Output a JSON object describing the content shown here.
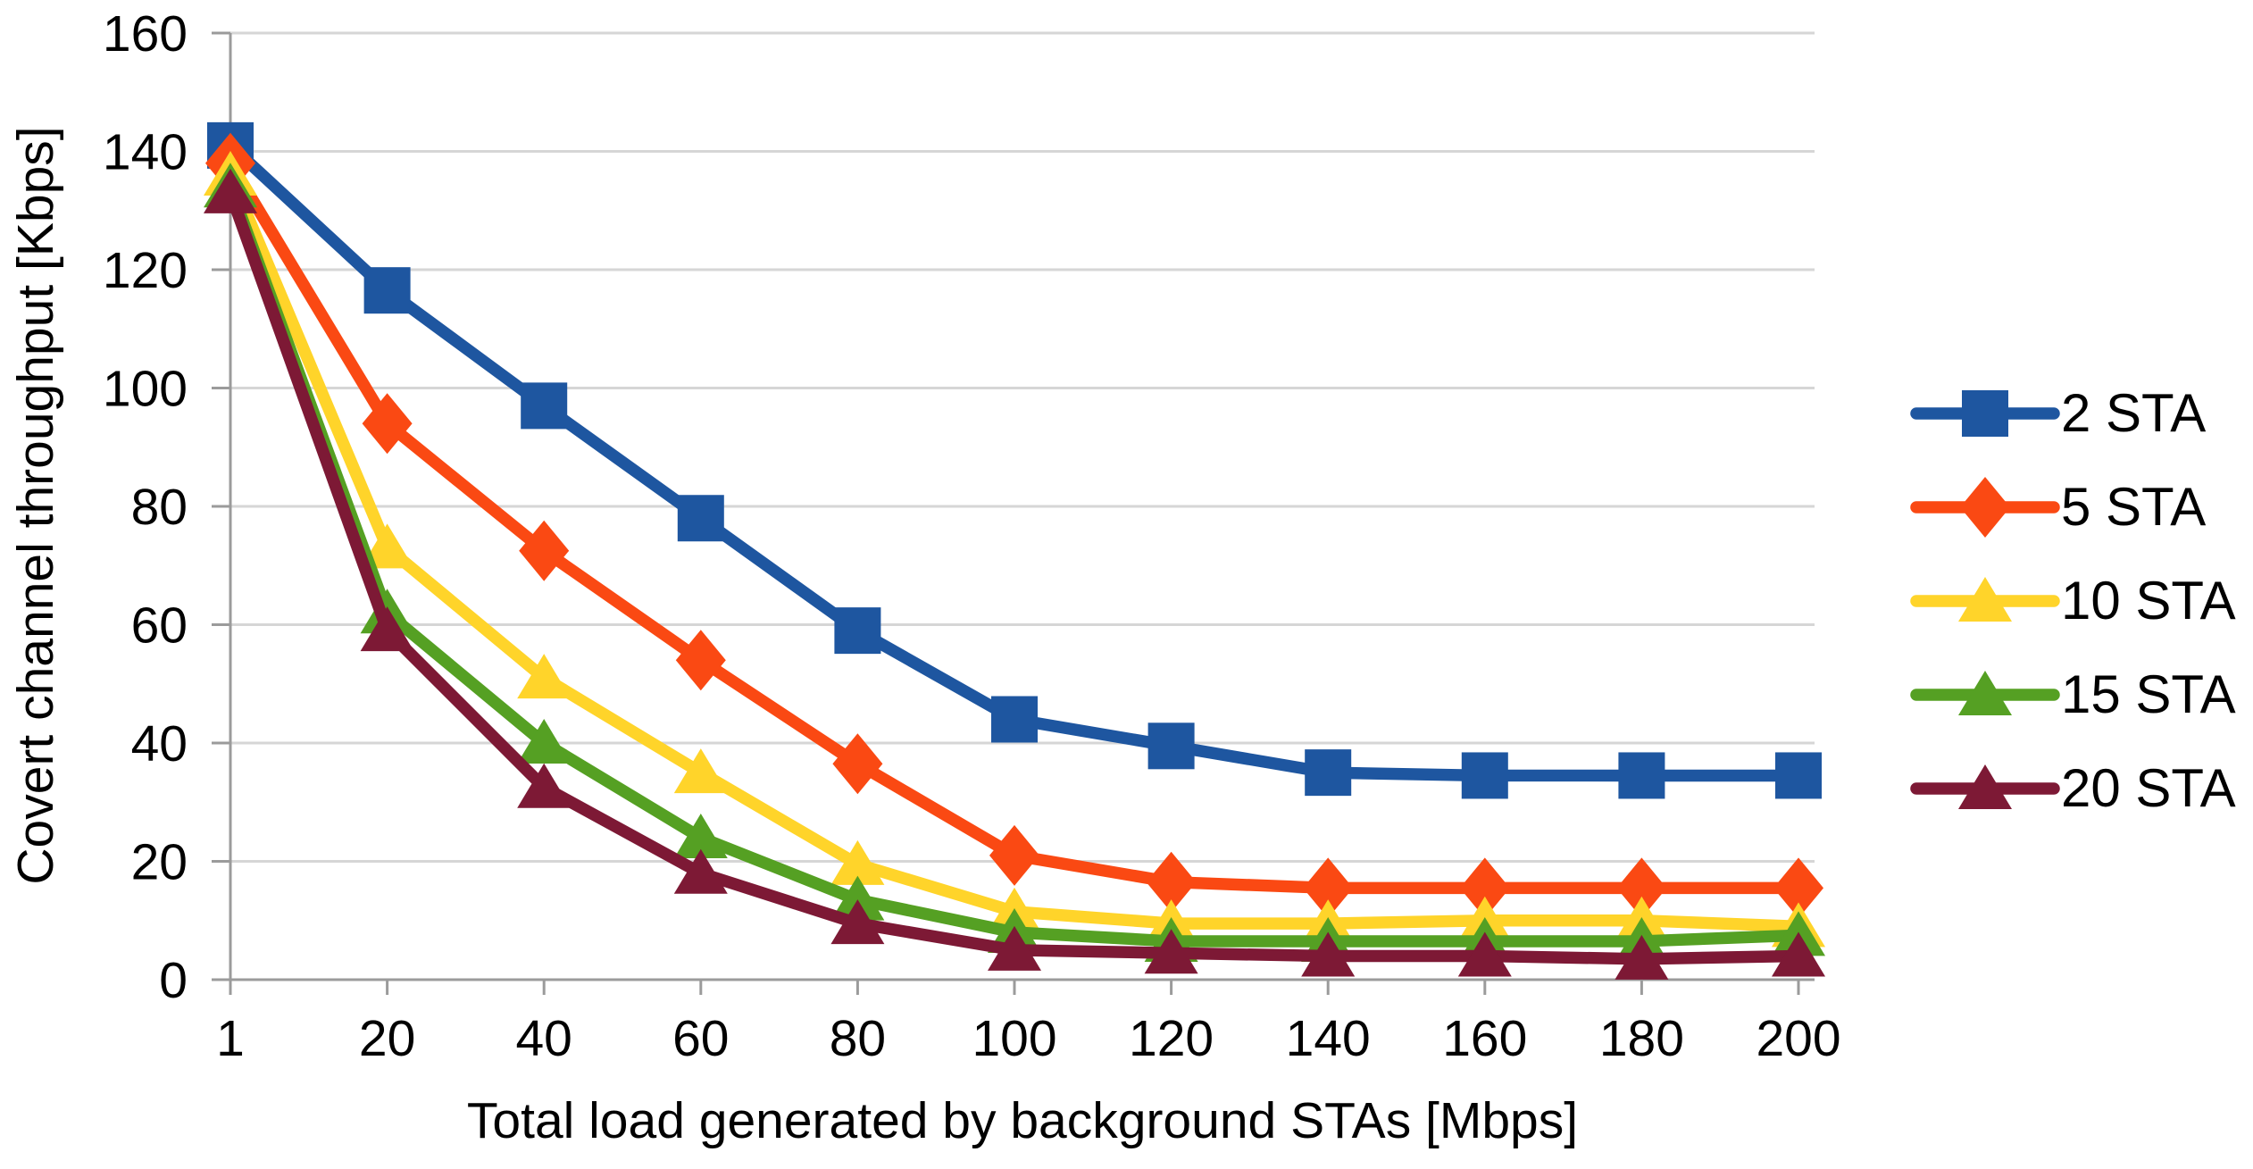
{
  "chart_data": {
    "type": "line",
    "title": "",
    "xlabel": "Total load generated by background STAs [Mbps]",
    "ylabel": "Covert channel throughput [Kbps]",
    "categories": [
      1,
      20,
      40,
      60,
      80,
      100,
      120,
      140,
      160,
      180,
      200
    ],
    "x_tick_labels": [
      "1",
      "20",
      "40",
      "60",
      "80",
      "100",
      "120",
      "140",
      "160",
      "180",
      "200"
    ],
    "y_ticks": [
      0,
      20,
      40,
      60,
      80,
      100,
      120,
      140,
      160
    ],
    "ylim": [
      0,
      160
    ],
    "grid": "horizontal-only",
    "legend_position": "right",
    "colors": {
      "gridline": "#D6D6D6",
      "axis": "#9B9B9B",
      "text": "#000000"
    },
    "series": [
      {
        "name": "2 STA",
        "marker": "square",
        "color": "#1E56A0",
        "values": [
          141,
          116.5,
          97,
          78,
          59,
          44,
          39.5,
          35,
          34.5,
          34.5,
          34.5
        ]
      },
      {
        "name": "5 STA",
        "marker": "diamond",
        "color": "#FA4913",
        "values": [
          138,
          94,
          72.5,
          54,
          36.5,
          21,
          16.5,
          15.5,
          15.5,
          15.5,
          15.5
        ]
      },
      {
        "name": "10 STA",
        "marker": "triangle",
        "color": "#FFD42A",
        "values": [
          136,
          73,
          51,
          35,
          19.5,
          11.5,
          9.5,
          9.5,
          10,
          10,
          9
        ]
      },
      {
        "name": "15 STA",
        "marker": "triangle",
        "color": "#55A023",
        "values": [
          134,
          62,
          40,
          24,
          13.5,
          8,
          6.5,
          6.5,
          6.5,
          6.5,
          7.5
        ]
      },
      {
        "name": "20 STA",
        "marker": "triangle",
        "color": "#7D1935",
        "values": [
          133,
          59,
          32.5,
          18,
          9.5,
          5,
          4.5,
          4,
          4,
          3.5,
          4
        ]
      }
    ]
  }
}
